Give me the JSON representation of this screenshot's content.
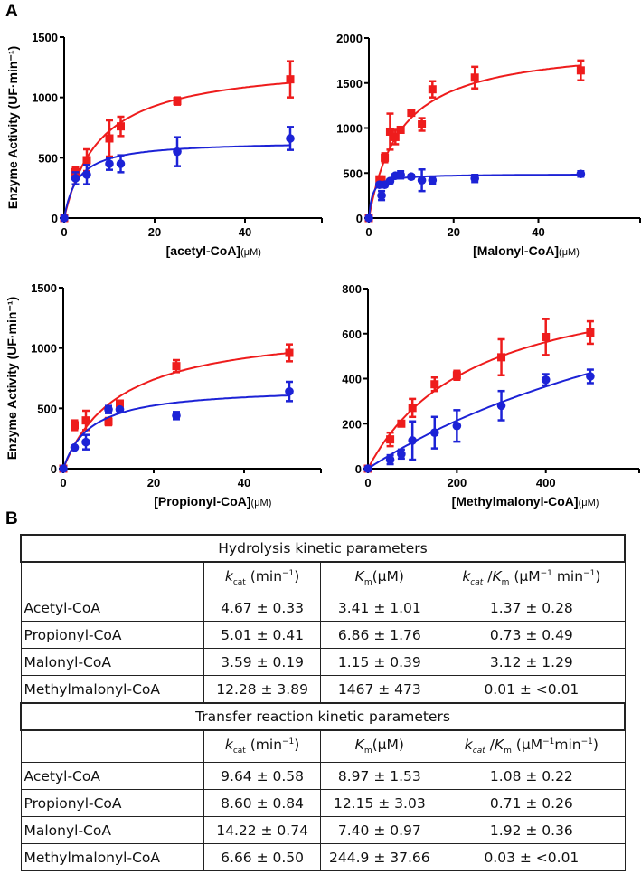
{
  "panel_labels": {
    "a": "A",
    "b": "B"
  },
  "chart_data": [
    {
      "type": "scatter",
      "ylabel": "Enzyme Activity (UF·min⁻¹)",
      "xlabel": "[acetyl-CoA]",
      "xunit": "(μM)",
      "xlim": [
        0,
        57
      ],
      "ylim": [
        0,
        1500
      ],
      "xticks": [
        "0",
        "20",
        "40"
      ],
      "yticks": [
        "0",
        "500",
        "1000",
        "1500"
      ],
      "series": [
        {
          "name": "red",
          "color": "#ee1c1c",
          "marker": "square",
          "x": [
            0,
            2.5,
            5,
            10,
            12.5,
            25,
            50
          ],
          "y": [
            0,
            380,
            480,
            660,
            760,
            970,
            1150
          ],
          "err": [
            0,
            40,
            90,
            150,
            80,
            30,
            150
          ],
          "fit": {
            "vmax": 1300,
            "km": 8
          }
        },
        {
          "name": "blue",
          "color": "#1c22d6",
          "marker": "circle",
          "x": [
            0,
            2.5,
            5,
            10,
            12.5,
            25,
            50
          ],
          "y": [
            0,
            330,
            360,
            450,
            450,
            550,
            660
          ],
          "err": [
            0,
            50,
            80,
            50,
            70,
            120,
            95
          ],
          "fit": {
            "vmax": 640,
            "km": 3
          }
        }
      ]
    },
    {
      "type": "scatter",
      "ylabel": "",
      "xlabel": "[Malonyl-CoA]",
      "xunit": "(μM)",
      "xlim": [
        0,
        64
      ],
      "ylim": [
        0,
        2000
      ],
      "xticks": [
        "0",
        "20",
        "40"
      ],
      "yticks": [
        "0",
        "500",
        "1000",
        "1500",
        "2000"
      ],
      "series": [
        {
          "name": "red",
          "color": "#ee1c1c",
          "marker": "square",
          "x": [
            0,
            2.5,
            3,
            3.75,
            5,
            6.25,
            7.5,
            10,
            12.5,
            15,
            25,
            50
          ],
          "y": [
            0,
            430,
            430,
            670,
            960,
            900,
            980,
            1170,
            1040,
            1430,
            1560,
            1640
          ],
          "err": [
            0,
            20,
            30,
            50,
            200,
            80,
            30,
            30,
            70,
            90,
            120,
            110
          ],
          "fit": {
            "vmax": 1950,
            "km": 7.5
          }
        },
        {
          "name": "blue",
          "color": "#1c22d6",
          "marker": "circle",
          "x": [
            0,
            2.5,
            3,
            3.75,
            5,
            6.25,
            7.5,
            10,
            12.5,
            15,
            25,
            50
          ],
          "y": [
            0,
            370,
            250,
            370,
            410,
            470,
            480,
            460,
            420,
            420,
            440,
            490
          ],
          "err": [
            0,
            20,
            50,
            20,
            20,
            20,
            40,
            20,
            120,
            40,
            40,
            30
          ],
          "fit": {
            "vmax": 490,
            "km": 0.8
          }
        }
      ]
    },
    {
      "type": "scatter",
      "ylabel": "Enzyme Activity (UF·min⁻¹)",
      "xlabel": "[Propionyl-CoA]",
      "xunit": "(μM)",
      "xlim": [
        0,
        57
      ],
      "ylim": [
        0,
        1500
      ],
      "xticks": [
        "0",
        "20",
        "40"
      ],
      "yticks": [
        "0",
        "500",
        "1000",
        "1500"
      ],
      "series": [
        {
          "name": "red",
          "color": "#ee1c1c",
          "marker": "square",
          "x": [
            0,
            2.5,
            5,
            10,
            12.5,
            25,
            50
          ],
          "y": [
            0,
            360,
            400,
            390,
            540,
            850,
            960
          ],
          "err": [
            0,
            40,
            80,
            30,
            20,
            50,
            70
          ],
          "fit": {
            "vmax": 1200,
            "km": 12.5
          }
        },
        {
          "name": "blue",
          "color": "#1c22d6",
          "marker": "circle",
          "x": [
            0,
            2.5,
            5,
            10,
            12.5,
            25,
            50
          ],
          "y": [
            0,
            175,
            220,
            490,
            490,
            440,
            640
          ],
          "err": [
            0,
            10,
            60,
            30,
            10,
            30,
            80
          ],
          "fit": {
            "vmax": 680,
            "km": 6
          }
        }
      ]
    },
    {
      "type": "scatter",
      "ylabel": "",
      "xlabel": "[Methylmalonyl-CoA]",
      "xunit": "(μM)",
      "xlim": [
        0,
        610
      ],
      "ylim": [
        0,
        800
      ],
      "xticks": [
        "0",
        "200",
        "400"
      ],
      "yticks": [
        "0",
        "200",
        "400",
        "600",
        "800"
      ],
      "series": [
        {
          "name": "red",
          "color": "#ee1c1c",
          "marker": "square",
          "x": [
            0,
            50,
            75,
            100,
            150,
            200,
            300,
            400,
            500
          ],
          "y": [
            0,
            130,
            200,
            270,
            375,
            415,
            495,
            585,
            605
          ],
          "err": [
            0,
            30,
            10,
            40,
            30,
            20,
            80,
            80,
            50
          ],
          "fit": {
            "vmax": 900,
            "km": 240
          }
        },
        {
          "name": "blue",
          "color": "#1c22d6",
          "marker": "circle",
          "x": [
            0,
            50,
            75,
            100,
            150,
            200,
            300,
            400,
            500
          ],
          "y": [
            0,
            40,
            65,
            125,
            160,
            190,
            280,
            395,
            410
          ],
          "err": [
            0,
            20,
            20,
            85,
            70,
            70,
            65,
            25,
            30
          ],
          "fit": {
            "vmax": 1250,
            "km": 970
          }
        }
      ]
    }
  ],
  "tables": [
    {
      "title": "Hydrolysis kinetic parameters",
      "headers": {
        "kcat": {
          "k": "k",
          "sub": "cat",
          "unit": " (min",
          "sup": "−1",
          "close": ")"
        },
        "km": {
          "k": "K",
          "sub": "m",
          "unit": "(μM)"
        },
        "ratio": {
          "k1": "k",
          "sub1": "cat",
          "sep": " /",
          "k2": "K",
          "sub2": "m",
          "unit": " (μM",
          "sup1": "−1",
          "mid": " min",
          "sup2": "−1",
          "close": ")"
        }
      },
      "rows": [
        {
          "name": "Acetyl-CoA",
          "kcat": "4.67 ± 0.33",
          "km": "3.41 ± 1.01",
          "ratio": "1.37 ± 0.28"
        },
        {
          "name": "Propionyl-CoA",
          "kcat": "5.01 ± 0.41",
          "km": "6.86 ± 1.76",
          "ratio": "0.73 ± 0.49"
        },
        {
          "name": "Malonyl-CoA",
          "kcat": "3.59 ± 0.19",
          "km": "1.15 ± 0.39",
          "ratio": "3.12 ± 1.29"
        },
        {
          "name": "Methylmalonyl-CoA",
          "kcat": "12.28 ± 3.89",
          "km": "1467 ±  473",
          "ratio": "0.01 ± <0.01"
        }
      ]
    },
    {
      "title": "Transfer reaction kinetic parameters",
      "headers": {
        "kcat": {
          "k": "k",
          "sub": "cat",
          "unit": " (min",
          "sup": "−1",
          "close": ")"
        },
        "km": {
          "k": "K",
          "sub": "m",
          "unit": "(μM)"
        },
        "ratio": {
          "k1": "k",
          "sub1": "cat",
          "sep": " /",
          "k2": "K",
          "sub2": "m",
          "unit": " (μM",
          "sup1": "−1",
          "mid": "min",
          "sup2": "−1",
          "close": ")"
        }
      },
      "rows": [
        {
          "name": "Acetyl-CoA",
          "kcat": "9.64 ± 0.58",
          "km": "8.97 ± 1.53",
          "ratio": "1.08 ± 0.22"
        },
        {
          "name": "Propionyl-CoA",
          "kcat": "8.60 ± 0.84",
          "km": "12.15 ± 3.03",
          "ratio": "0.71 ± 0.26"
        },
        {
          "name": "Malonyl-CoA",
          "kcat": "14.22 ± 0.74",
          "km": "7.40 ± 0.97",
          "ratio": "1.92 ± 0.36"
        },
        {
          "name": "Methylmalonyl-CoA",
          "kcat": "6.66 ± 0.50",
          "km": "244.9 ± 37.66",
          "ratio": "0.03 ± <0.01"
        }
      ]
    }
  ]
}
